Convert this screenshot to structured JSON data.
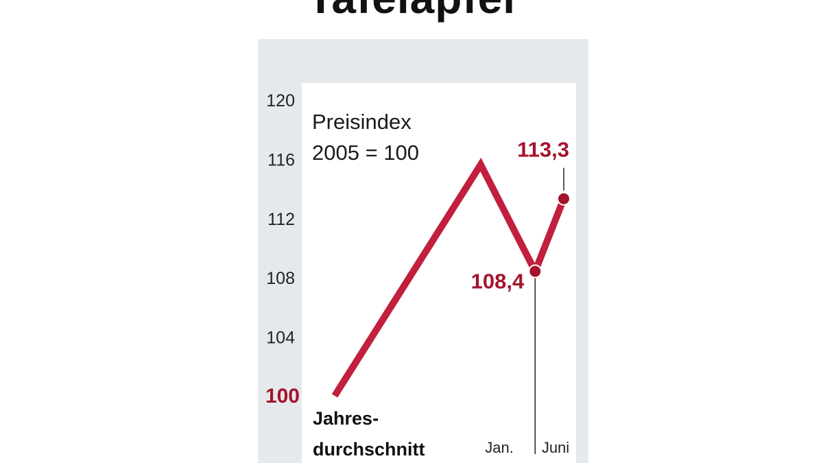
{
  "headline": "Tafelapfel",
  "chart_data": {
    "type": "line",
    "subtitle_lines": [
      "Preisindex",
      "2005 = 100"
    ],
    "y_ticks": [
      "120",
      "116",
      "112",
      "108",
      "104",
      "100"
    ],
    "y_tick_values": [
      120,
      116,
      112,
      108,
      104,
      100
    ],
    "ylim": [
      100,
      120
    ],
    "points": [
      {
        "x": 0,
        "y": 100.0
      },
      {
        "x": 2.55,
        "y": 115.6
      },
      {
        "x": 3.5,
        "y": 108.4
      },
      {
        "x": 4.0,
        "y": 113.3
      }
    ],
    "highlight_points": [
      {
        "label": "108,4",
        "x": 3.5,
        "y": 108.4
      },
      {
        "label": "113,3",
        "x": 4.0,
        "y": 113.3
      }
    ],
    "x_labels": {
      "start": [
        "Jahres-",
        "durchschnitt"
      ],
      "jan": "Jan.",
      "jun": "Juni"
    },
    "line_color": "#c11f3d",
    "highlight_color": "#a3142c",
    "grid": false
  }
}
